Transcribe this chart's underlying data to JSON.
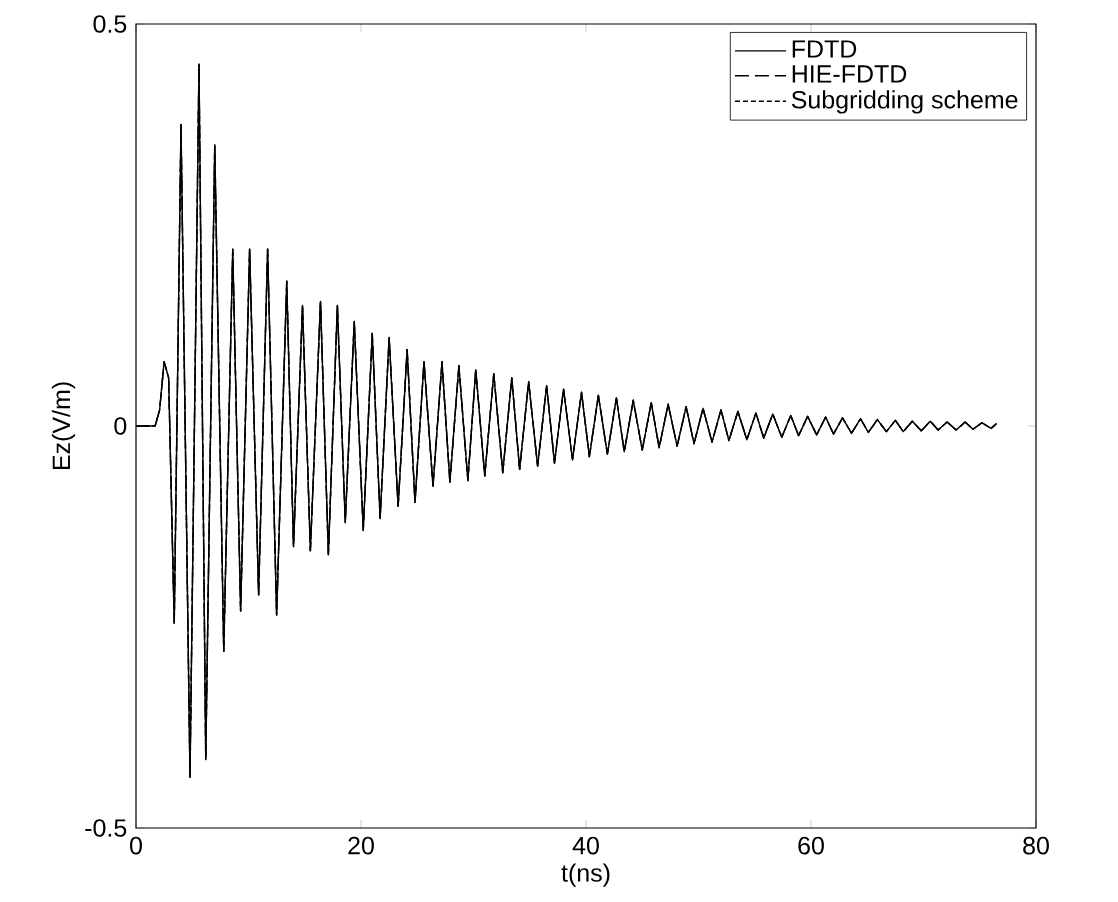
{
  "chart_data": {
    "type": "line",
    "xlabel": "t(ns)",
    "ylabel": "Ez(V/m)",
    "x": [
      0,
      1.7,
      2.1,
      2.5,
      2.9,
      3.4,
      4.0,
      4.8,
      5.6,
      6.2,
      7.0,
      7.8,
      8.6,
      9.3,
      10.1,
      10.9,
      11.7,
      12.5,
      13.4,
      14.0,
      14.8,
      15.5,
      16.4,
      17.1,
      17.9,
      18.6,
      19.4,
      20.2,
      21.0,
      21.7,
      22.5,
      23.3,
      24.1,
      24.8,
      25.6,
      26.4,
      27.2,
      27.9,
      28.7,
      29.5,
      30.2,
      31.0,
      31.8,
      32.6,
      33.4,
      34.1,
      34.9,
      35.7,
      36.5,
      37.2,
      38.0,
      38.8,
      39.6,
      40.3,
      41.1,
      41.9,
      42.7,
      43.4,
      44.2,
      45.0,
      45.8,
      46.5,
      47.3,
      48.1,
      48.9,
      49.6,
      50.4,
      51.2,
      52.0,
      52.7,
      53.5,
      54.3,
      55.1,
      55.8,
      56.6,
      57.4,
      58.2,
      58.9,
      59.7,
      60.5,
      61.3,
      62.0,
      62.8,
      63.6,
      64.4,
      65.1,
      65.9,
      66.7,
      67.5,
      68.2,
      69.0,
      69.8,
      70.6,
      71.3,
      72.1,
      72.9,
      73.7,
      74.4,
      75.2,
      76.0,
      76.5
    ],
    "series": [
      {
        "name": "FDTD",
        "color": "#000000",
        "line_style": "solid",
        "values": [
          0,
          0,
          0.02,
          0.08,
          0.06,
          -0.245,
          0.375,
          -0.437,
          0.45,
          -0.415,
          0.35,
          -0.28,
          0.22,
          -0.23,
          0.22,
          -0.21,
          0.22,
          -0.235,
          0.18,
          -0.15,
          0.15,
          -0.155,
          0.155,
          -0.16,
          0.15,
          -0.12,
          0.13,
          -0.13,
          0.115,
          -0.115,
          0.11,
          -0.1,
          0.095,
          -0.095,
          0.08,
          -0.075,
          0.08,
          -0.07,
          0.075,
          -0.068,
          0.07,
          -0.062,
          0.065,
          -0.058,
          0.06,
          -0.054,
          0.055,
          -0.05,
          0.05,
          -0.046,
          0.046,
          -0.042,
          0.042,
          -0.038,
          0.038,
          -0.035,
          0.035,
          -0.032,
          0.032,
          -0.03,
          0.029,
          -0.027,
          0.027,
          -0.025,
          0.024,
          -0.022,
          0.022,
          -0.02,
          0.02,
          -0.018,
          0.018,
          -0.017,
          0.016,
          -0.015,
          0.015,
          -0.014,
          0.013,
          -0.012,
          0.012,
          -0.011,
          0.011,
          -0.01,
          0.01,
          -0.009,
          0.009,
          -0.008,
          0.008,
          -0.007,
          0.007,
          -0.007,
          0.006,
          -0.006,
          0.006,
          -0.005,
          0.005,
          -0.005,
          0.005,
          -0.004,
          0.004,
          -0.003,
          0.003
        ]
      },
      {
        "name": "HIE-FDTD",
        "color": "#000000",
        "line_style": "dashed",
        "values": [
          0,
          0,
          0.02,
          0.08,
          0.06,
          -0.245,
          0.375,
          -0.437,
          0.45,
          -0.415,
          0.35,
          -0.28,
          0.22,
          -0.23,
          0.22,
          -0.21,
          0.22,
          -0.235,
          0.18,
          -0.15,
          0.15,
          -0.155,
          0.155,
          -0.16,
          0.15,
          -0.12,
          0.13,
          -0.13,
          0.115,
          -0.115,
          0.11,
          -0.1,
          0.095,
          -0.095,
          0.08,
          -0.075,
          0.08,
          -0.07,
          0.075,
          -0.068,
          0.07,
          -0.062,
          0.065,
          -0.058,
          0.06,
          -0.054,
          0.055,
          -0.05,
          0.05,
          -0.046,
          0.046,
          -0.042,
          0.042,
          -0.038,
          0.038,
          -0.035,
          0.035,
          -0.032,
          0.032,
          -0.03,
          0.029,
          -0.027,
          0.027,
          -0.025,
          0.024,
          -0.022,
          0.022,
          -0.02,
          0.02,
          -0.018,
          0.018,
          -0.017,
          0.016,
          -0.015,
          0.015,
          -0.014,
          0.013,
          -0.012,
          0.012,
          -0.011,
          0.011,
          -0.01,
          0.01,
          -0.009,
          0.009,
          -0.008,
          0.008,
          -0.007,
          0.007,
          -0.007,
          0.006,
          -0.006,
          0.006,
          -0.005,
          0.005,
          -0.005,
          0.005,
          -0.004,
          0.004,
          -0.003,
          0.003
        ]
      },
      {
        "name": "Subgridding scheme",
        "color": "#000000",
        "line_style": "dotted",
        "values": [
          0,
          0,
          0.02,
          0.08,
          0.06,
          -0.245,
          0.375,
          -0.437,
          0.45,
          -0.415,
          0.35,
          -0.28,
          0.22,
          -0.23,
          0.22,
          -0.21,
          0.22,
          -0.235,
          0.18,
          -0.15,
          0.15,
          -0.155,
          0.155,
          -0.16,
          0.15,
          -0.12,
          0.13,
          -0.13,
          0.115,
          -0.115,
          0.11,
          -0.1,
          0.095,
          -0.095,
          0.08,
          -0.075,
          0.08,
          -0.07,
          0.075,
          -0.068,
          0.07,
          -0.062,
          0.065,
          -0.058,
          0.06,
          -0.054,
          0.055,
          -0.05,
          0.05,
          -0.046,
          0.046,
          -0.042,
          0.042,
          -0.038,
          0.038,
          -0.035,
          0.035,
          -0.032,
          0.032,
          -0.03,
          0.029,
          -0.027,
          0.027,
          -0.025,
          0.024,
          -0.022,
          0.022,
          -0.02,
          0.02,
          -0.018,
          0.018,
          -0.017,
          0.016,
          -0.015,
          0.015,
          -0.014,
          0.013,
          -0.012,
          0.012,
          -0.011,
          0.011,
          -0.01,
          0.01,
          -0.009,
          0.009,
          -0.008,
          0.008,
          -0.007,
          0.007,
          -0.007,
          0.006,
          -0.006,
          0.006,
          -0.005,
          0.005,
          -0.005,
          0.005,
          -0.004,
          0.004,
          -0.003,
          0.003
        ]
      }
    ],
    "xlim": [
      0,
      80
    ],
    "xticks": [
      0,
      20,
      40,
      60,
      80
    ],
    "ylim": [
      -0.5,
      0.5
    ],
    "yticks": [
      -0.5,
      0,
      0.5
    ],
    "grid": false,
    "legend": "top right",
    "marker": "none"
  }
}
